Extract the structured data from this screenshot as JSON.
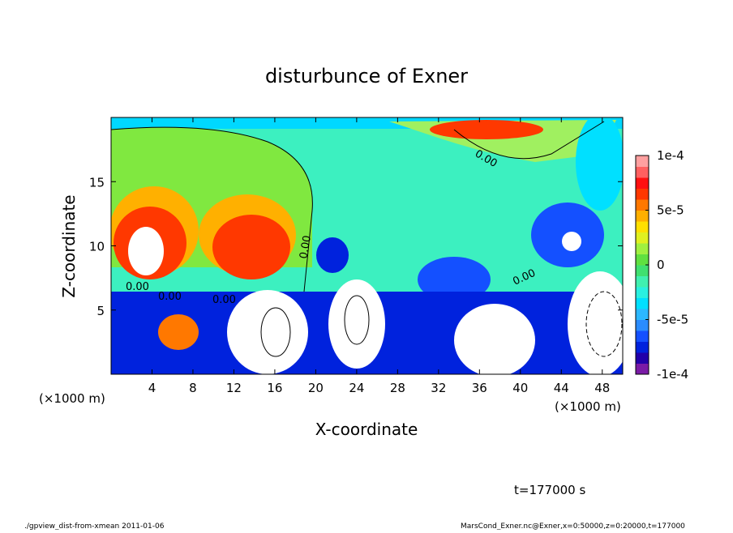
{
  "chart_data": {
    "type": "contour",
    "title": "disturbunce of Exner",
    "xlabel": "X-coordinate",
    "ylabel": "Z-coordinate",
    "x_unit": "(×1000 m)",
    "x_unit_right": "(×1000 m)",
    "time_label": "t=177000 s",
    "footer_left": "./gpview_dist-from-xmean  2011-01-06",
    "footer_right": "MarsCond_Exner.nc@Exner,x=0:50000,z=0:20000,t=177000",
    "xlim": [
      0,
      50
    ],
    "xticks": [
      4,
      8,
      12,
      16,
      20,
      24,
      28,
      32,
      36,
      40,
      44,
      48
    ],
    "ylim": [
      0,
      20
    ],
    "yticks": [
      5,
      10,
      15
    ],
    "colorbar": {
      "lim": [
        -0.0001,
        0.0001
      ],
      "ticks": [
        {
          "value": 0.0001,
          "label": "1e-4"
        },
        {
          "value": 5e-05,
          "label": "5e-5"
        },
        0,
        {
          "value": -5e-05,
          "label": "-5e-5"
        },
        {
          "value": -0.0001,
          "label": "-1e-4"
        }
      ],
      "colors": [
        "#7a1ba6",
        "#2200aa",
        "#0022dd",
        "#1450ff",
        "#2a8cff",
        "#2cb8ff",
        "#00e0ff",
        "#2af0e0",
        "#40f0b0",
        "#40e070",
        "#60e040",
        "#a0f040",
        "#e0f020",
        "#ffe000",
        "#ffb000",
        "#ff7800",
        "#ff3800",
        "#ff1010",
        "#ff6060",
        "#ffa0a0"
      ]
    },
    "annotations": [
      "0.00",
      "0.00",
      "0.00",
      "0.00",
      "0.00",
      "0.00"
    ]
  }
}
